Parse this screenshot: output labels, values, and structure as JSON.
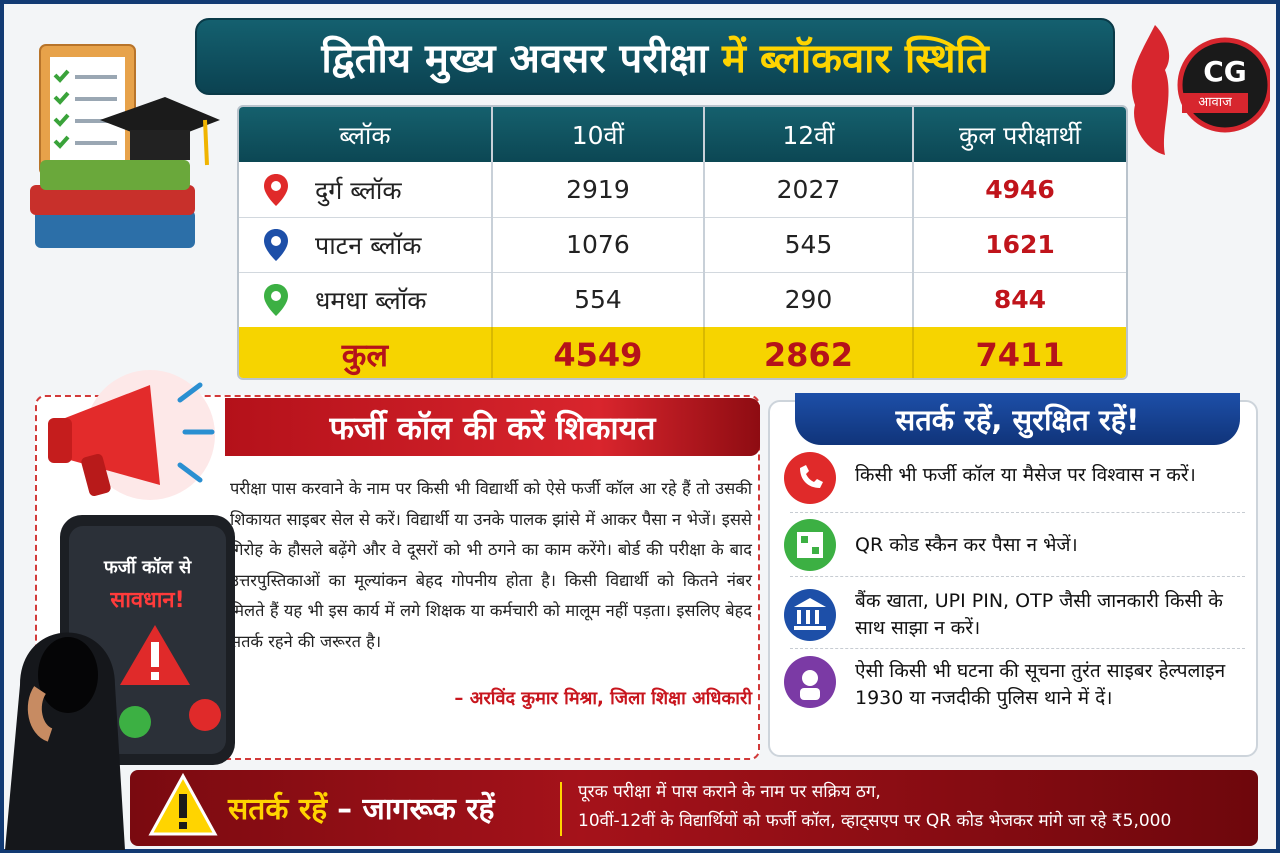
{
  "header": {
    "title_part1": "द्वितीय मुख्य अवसर परीक्षा",
    "title_part2": "में ब्लॉकवार स्थिति"
  },
  "logo": {
    "text": "CG",
    "subtext": "आवाज"
  },
  "table": {
    "headers": [
      "ब्लॉक",
      "10वीं",
      "12वीं",
      "कुल परीक्षार्थी"
    ],
    "rows": [
      [
        "दुर्ग ब्लॉक",
        2919,
        2027,
        4946
      ],
      [
        "पाटन ब्लॉक",
        1076,
        545,
        1621
      ],
      [
        "धमधा ब्लॉक",
        554,
        290,
        844
      ]
    ],
    "total": [
      "कुल",
      4549,
      2862,
      7411
    ]
  },
  "complaint": {
    "title": "फर्जी कॉल की करें शिकायत",
    "body": "परीक्षा पास करवाने के नाम पर किसी भी विद्यार्थी को ऐसे फर्जी कॉल आ रहे हैं तो उसकी शिकायत साइबर सेल से करें। विद्यार्थी या उनके पालक झांसे में आकर पैसा न भेजें। इससे गिरोह के हौसले बढ़ेंगे और वे दूसरों को भी ठगने का काम करेंगे। बोर्ड की परीक्षा के बाद उत्तरपुस्तिकाओं का मूल्यांकन बेहद गोपनीय होता है। किसी विद्यार्थी को कितने नंबर मिलते हैं यह भी इस कार्य में लगे शिक्षक या कर्मचारी को मालूम नहीं पड़ता। इसलिए बेहद सतर्क रहने की जरूरत है।",
    "attribution": "– अरविंद कुमार मिश्रा, जिला शिक्षा अधिकारी"
  },
  "phone": {
    "line1": "फर्जी कॉल से",
    "line2": "सावधान!"
  },
  "tips": {
    "title": "सतर्क रहें, सुरक्षित रहें!",
    "items": [
      "किसी भी फर्जी कॉल या मैसेज पर विश्वास न करें।",
      "QR कोड स्कैन कर पैसा न भेजें।",
      "बैंक खाता, UPI PIN, OTP जैसी जानकारी किसी के साथ साझा न करें।",
      "ऐसी किसी भी घटना की सूचना तुरंत साइबर हेल्पलाइन 1930 या नजदीकी पुलिस थाने में दें।"
    ]
  },
  "footer": {
    "slogan_part1": "सतर्क रहें",
    "slogan_part2": "– जागरूक रहें",
    "lines": [
      "पूरक परीक्षा में पास कराने के नाम पर सक्रिय ठग,",
      "10वीं-12वीं के विद्यार्थियों को फर्जी कॉल, व्हाट्सएप पर QR कोड भेजकर मांगे जा रहे ₹5,000"
    ]
  }
}
